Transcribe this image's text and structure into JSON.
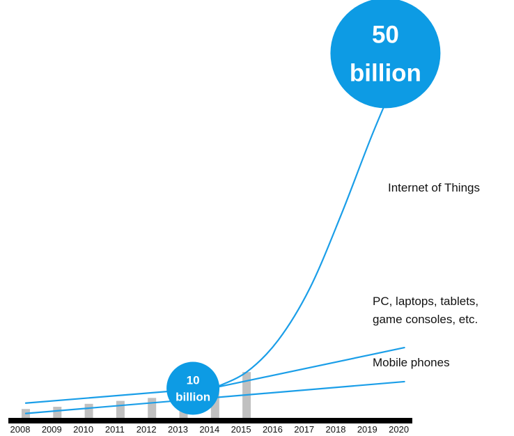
{
  "chart_data": {
    "type": "line",
    "x": [
      "2008",
      "2009",
      "2010",
      "2011",
      "2012",
      "2013",
      "2014",
      "2015",
      "2016",
      "2017",
      "2018",
      "2019",
      "2020"
    ],
    "bars": {
      "values": [
        1.2,
        1.5,
        1.9,
        2.3,
        2.7,
        3.3,
        4.6,
        6.2
      ],
      "color": "#c0c0c0"
    },
    "series": [
      {
        "name": "Internet of Things",
        "points": [
          [
            2014,
            4.1
          ],
          [
            2015,
            6.2
          ],
          [
            2016,
            10.5
          ],
          [
            2017,
            17.5
          ],
          [
            2018,
            27.5
          ],
          [
            2019,
            38.5
          ],
          [
            2020,
            48.5
          ]
        ]
      },
      {
        "name": "PC, laptops, tablets, game consoles, etc.",
        "points": [
          [
            2008,
            2.0
          ],
          [
            2014,
            4.1
          ],
          [
            2020,
            9.5
          ]
        ]
      },
      {
        "name": "Mobile phones",
        "points": [
          [
            2008,
            0.6
          ],
          [
            2020,
            4.9
          ]
        ]
      }
    ],
    "annotations": [
      {
        "year": 2013.3,
        "value": 4.0,
        "lines": [
          "10",
          "billion"
        ]
      },
      {
        "year": 2019.4,
        "value": 49.3,
        "lines": [
          "50",
          "billion"
        ]
      }
    ],
    "ylim": [
      0,
      60
    ],
    "grid": false,
    "legend": "none",
    "colors": {
      "line": "#1a9ee8",
      "bubble": "#0d9be4",
      "bar": "#c0c0c0",
      "axis": "#000000"
    }
  }
}
